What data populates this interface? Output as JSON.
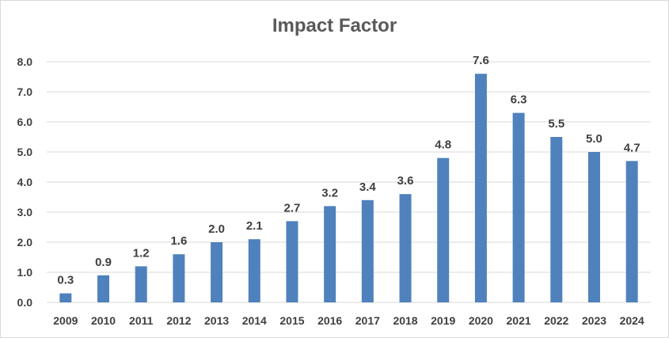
{
  "chart_data": {
    "type": "bar",
    "title": "Impact Factor",
    "xlabel": "",
    "ylabel": "",
    "categories": [
      "2009",
      "2010",
      "2011",
      "2012",
      "2013",
      "2014",
      "2015",
      "2016",
      "2017",
      "2018",
      "2019",
      "2020",
      "2021",
      "2022",
      "2023",
      "2024"
    ],
    "values": [
      0.3,
      0.9,
      1.2,
      1.6,
      2.0,
      2.1,
      2.7,
      3.2,
      3.4,
      3.6,
      4.8,
      7.6,
      6.3,
      5.5,
      5.0,
      4.7
    ],
    "data_labels": [
      "0.3",
      "0.9",
      "1.2",
      "1.6",
      "2.0",
      "2.1",
      "2.7",
      "3.2",
      "3.4",
      "3.6",
      "4.8",
      "7.6",
      "6.3",
      "5.5",
      "5.0",
      "4.7"
    ],
    "ylim": [
      0,
      8
    ],
    "yticks": [
      "0.0",
      "1.0",
      "2.0",
      "3.0",
      "4.0",
      "5.0",
      "6.0",
      "7.0",
      "8.0"
    ],
    "grid": true,
    "legend": "none",
    "bar_color": "#4f81bd",
    "grid_color": "#d9d9d9"
  }
}
